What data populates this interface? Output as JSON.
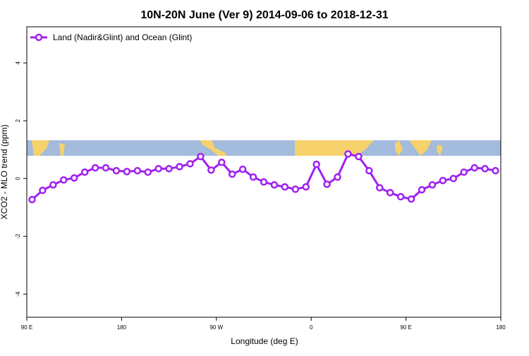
{
  "chart_data": {
    "type": "line",
    "title": "10N-20N June (Ver 9)   2014-09-06 to 2018-12-31",
    "x_label": "Longitude (deg E)",
    "y_label": "XCO2 - MLO trend (ppm)",
    "x": [
      95,
      105,
      115,
      125,
      135,
      145,
      155,
      165,
      175,
      185,
      195,
      205,
      215,
      225,
      235,
      245,
      255,
      265,
      275,
      285,
      295,
      305,
      315,
      325,
      335,
      345,
      355,
      365,
      375,
      385,
      395,
      405,
      415,
      425,
      435,
      445,
      455,
      465,
      475,
      485,
      495,
      505,
      515,
      525,
      535
    ],
    "series": [
      {
        "name": "Land (Nadir&Glint) and Ocean (Glint)",
        "color": "#a020f0",
        "values": [
          -0.73,
          -0.41,
          -0.22,
          -0.05,
          0.02,
          0.22,
          0.37,
          0.37,
          0.27,
          0.24,
          0.27,
          0.22,
          0.34,
          0.34,
          0.41,
          0.51,
          0.76,
          0.29,
          0.56,
          0.15,
          0.32,
          0.05,
          -0.12,
          -0.22,
          -0.29,
          -0.37,
          -0.29,
          0.49,
          -0.2,
          0.05,
          0.85,
          0.76,
          0.27,
          -0.32,
          -0.49,
          -0.63,
          -0.71,
          -0.39,
          -0.22,
          -0.07,
          0.0,
          0.22,
          0.37,
          0.34,
          0.27
        ]
      }
    ],
    "xlim": [
      90,
      540
    ],
    "xticks": [
      {
        "value": 90,
        "label": "90 E"
      },
      180,
      {
        "value": 270,
        "label": "90 W"
      },
      {
        "value": 360,
        "label": "0"
      },
      {
        "value": 450,
        "label": "90 E"
      },
      {
        "value": 540,
        "label": "180"
      }
    ],
    "ylim": [
      -4.8,
      5.25
    ],
    "yticks": [
      -4,
      -2,
      0,
      2,
      4
    ],
    "legend": "top-left"
  }
}
